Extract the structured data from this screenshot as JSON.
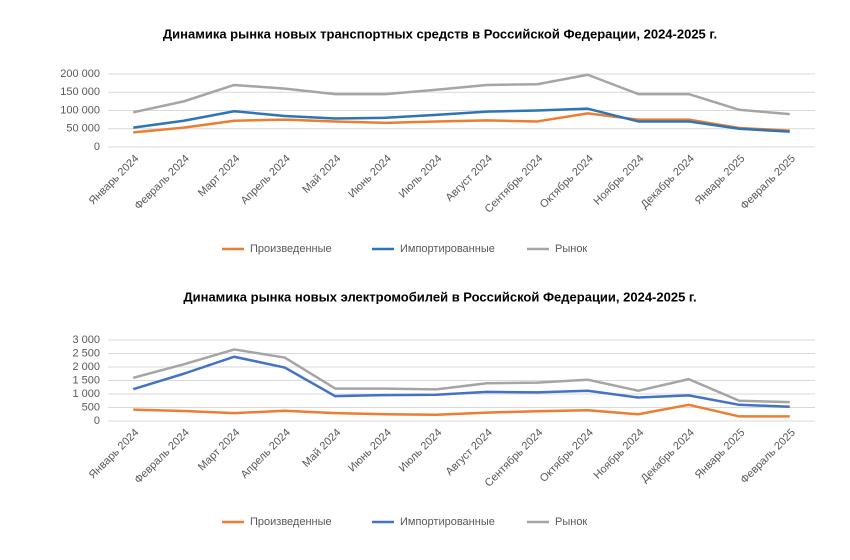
{
  "chart_data": [
    {
      "type": "line",
      "title": "Динамика рынка новых транспортных средств в Российской Федерации, 2024-2025 г.",
      "categories": [
        "Январь 2024",
        "Февраль 2024",
        "Март 2024",
        "Апрель 2024",
        "Май 2024",
        "Июнь 2024",
        "Июль 2024",
        "Август 2024",
        "Сентябрь 2024",
        "Октябрь 2024",
        "Ноябрь 2024",
        "Декабрь 2024",
        "Январь 2025",
        "Февраль 2025"
      ],
      "series": [
        {
          "name": "Произведенные",
          "color": "#ed7d31",
          "values": [
            40000,
            53000,
            72000,
            75000,
            70000,
            66000,
            70000,
            73000,
            70000,
            92000,
            75000,
            75000,
            52000,
            45000
          ]
        },
        {
          "name": "Импортированные",
          "color": "#2e75b6",
          "values": [
            53000,
            72000,
            98000,
            85000,
            78000,
            80000,
            88000,
            97000,
            100000,
            105000,
            70000,
            70000,
            50000,
            42000
          ]
        },
        {
          "name": "Рынок",
          "color": "#a5a5a5",
          "values": [
            95000,
            125000,
            170000,
            160000,
            145000,
            145000,
            157000,
            170000,
            172000,
            198000,
            145000,
            145000,
            102000,
            90000
          ]
        }
      ],
      "ylim": [
        0,
        200000
      ],
      "yticks": [
        0,
        {
          "value": 50000,
          "label": "50 000"
        },
        {
          "value": 100000,
          "label": "100 000"
        },
        {
          "value": 150000,
          "label": "150 000"
        },
        {
          "value": 200000,
          "label": "200 000"
        }
      ],
      "grid": true,
      "legend": "bottom"
    },
    {
      "type": "line",
      "title": "Динамика рынка новых электромобилей в Российской Федерации, 2024-2025 г.",
      "categories": [
        "Январь 2024",
        "Февраль 2024",
        "Март 2024",
        "Апрель 2024",
        "Май 2024",
        "Июнь 2024",
        "Июль 2024",
        "Август 2024",
        "Сентябрь 2024",
        "Октябрь 2024",
        "Ноябрь 2024",
        "Декабрь 2024",
        "Январь 2025",
        "Февраль 2025"
      ],
      "series": [
        {
          "name": "Произведенные",
          "color": "#ed7d31",
          "values": [
            420,
            370,
            290,
            380,
            290,
            250,
            230,
            310,
            360,
            400,
            250,
            600,
            170,
            170
          ]
        },
        {
          "name": "Импортированные",
          "color": "#4472c4",
          "values": [
            1180,
            1750,
            2380,
            1980,
            920,
            960,
            970,
            1080,
            1060,
            1120,
            870,
            950,
            600,
            530
          ]
        },
        {
          "name": "Рынок",
          "color": "#a5a5a5",
          "values": [
            1600,
            2100,
            2650,
            2350,
            1200,
            1200,
            1170,
            1400,
            1420,
            1530,
            1120,
            1550,
            750,
            700
          ]
        }
      ],
      "ylim": [
        0,
        3000
      ],
      "yticks": [
        0,
        500,
        {
          "value": 1000,
          "label": "1 000"
        },
        {
          "value": 1500,
          "label": "1 500"
        },
        {
          "value": 2000,
          "label": "2 000"
        },
        {
          "value": 2500,
          "label": "2 500"
        },
        {
          "value": 3000,
          "label": "3 000"
        }
      ],
      "grid": true,
      "legend": "bottom"
    }
  ]
}
